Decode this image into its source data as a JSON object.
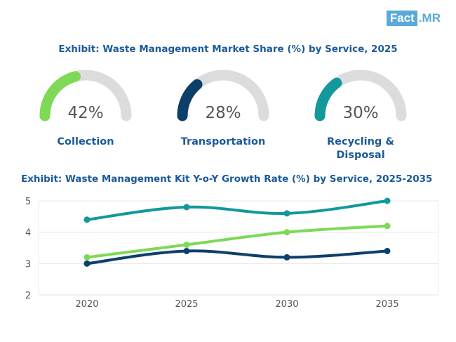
{
  "logo": {
    "left": "Fact",
    "right": ".MR"
  },
  "colors": {
    "title": "#1b5a99",
    "track": "#dcdcdf",
    "collection": "#7ed957",
    "transportation": "#0d3f6b",
    "recycling": "#13989b"
  },
  "chart_data": [
    {
      "type": "gauge",
      "title": "Exhibit: Waste Management Market Share (%) by Service, 2025",
      "max": 100,
      "items": [
        {
          "label": "Collection",
          "value": 42,
          "display": "42%",
          "color": "#7ed957"
        },
        {
          "label": "Transportation",
          "value": 28,
          "display": "28%",
          "color": "#0d3f6b"
        },
        {
          "label": "Recycling &\nDisposal",
          "value": 30,
          "display": "30%",
          "color": "#13989b"
        }
      ]
    },
    {
      "type": "line",
      "title": "Exhibit: Waste Management Kit Y-o-Y Growth Rate (%) by Service, 2025-2035",
      "categories": [
        "2020",
        "2025",
        "2030",
        "2035"
      ],
      "ylim": [
        2,
        5
      ],
      "yticks": [
        2,
        3,
        4,
        5
      ],
      "grid": true,
      "legend": "none",
      "series": [
        {
          "name": "Recycling & Disposal",
          "color": "#13989b",
          "values": [
            4.4,
            4.8,
            4.6,
            5.0
          ]
        },
        {
          "name": "Collection",
          "color": "#7ed957",
          "values": [
            3.2,
            3.6,
            4.0,
            4.2
          ]
        },
        {
          "name": "Transportation",
          "color": "#0d3f6b",
          "values": [
            3.0,
            3.4,
            3.2,
            3.4
          ]
        }
      ]
    }
  ]
}
